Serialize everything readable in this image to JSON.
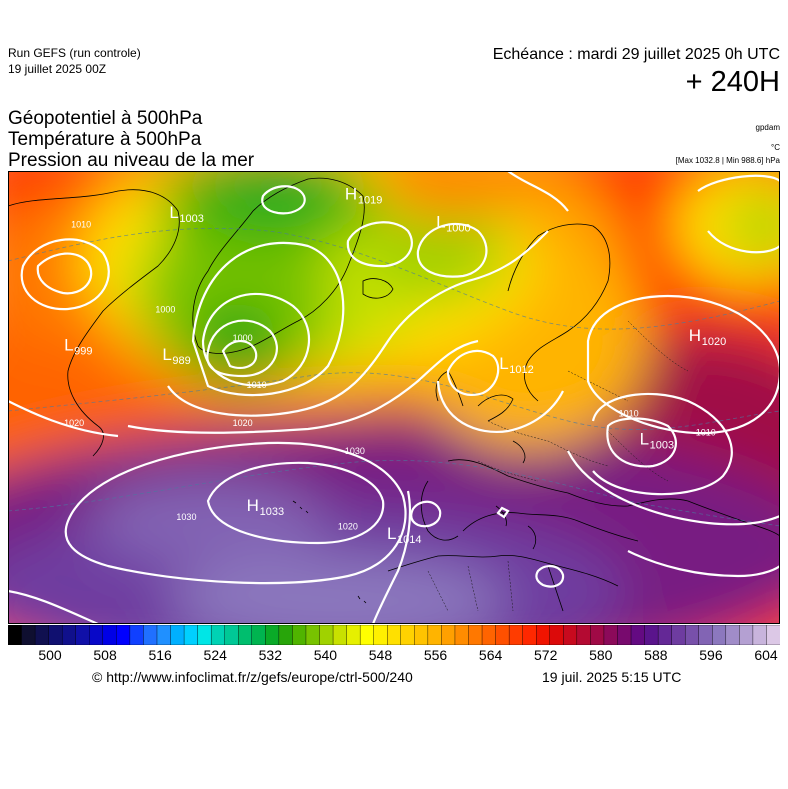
{
  "header": {
    "run_title": "Run GEFS (run controle)",
    "run_date": "19 juillet 2025 00Z",
    "valid_time": "Echéance : mardi 29 juillet 2025 0h UTC",
    "lead_time": "+ 240H"
  },
  "titles": {
    "line1": "Géopotentiel à 500hPa",
    "line2": "Température à 500hPa",
    "line3": "Pression au niveau de la mer"
  },
  "units": {
    "geopotential": "gpdam",
    "temperature": "°C",
    "pressure_extremes": "[Max 1032.8 | Min 988.6] hPa"
  },
  "colorbar": {
    "tick_labels": [
      "500",
      "508",
      "516",
      "524",
      "532",
      "540",
      "548",
      "556",
      "564",
      "572",
      "580",
      "588",
      "596",
      "604"
    ],
    "colors": [
      "#000000",
      "#0f0f30",
      "#101050",
      "#101070",
      "#10108c",
      "#1010a8",
      "#0808c8",
      "#0000e6",
      "#0000ff",
      "#1040ff",
      "#2070ff",
      "#2090ff",
      "#00b0ff",
      "#00d0ff",
      "#00e6e6",
      "#00d2b4",
      "#00c896",
      "#00be6e",
      "#00b450",
      "#0aaa28",
      "#28a50a",
      "#50b400",
      "#78c300",
      "#a0d200",
      "#c8e100",
      "#e6f000",
      "#ffff00",
      "#fff000",
      "#ffe000",
      "#ffd200",
      "#ffc300",
      "#ffb400",
      "#ffa000",
      "#ff8c00",
      "#ff7800",
      "#ff6400",
      "#ff5000",
      "#ff3c00",
      "#ff2800",
      "#f01400",
      "#dc0a0a",
      "#c80a1e",
      "#b40a32",
      "#a00a46",
      "#8c0a5a",
      "#780a6e",
      "#640a82",
      "#5a148c",
      "#642896",
      "#6e3ca0",
      "#7850aa",
      "#8264b4",
      "#8c78be",
      "#a08cc8",
      "#b4a0d2",
      "#c8b4dc",
      "#dcc8e6"
    ]
  },
  "pressure_centers": [
    {
      "type": "L",
      "value": "999",
      "lon": -52,
      "lat": 57
    },
    {
      "type": "L",
      "value": "1003",
      "lon": -37,
      "lat": 71
    },
    {
      "type": "H",
      "value": "1019",
      "lon": -12,
      "lat": 73
    },
    {
      "type": "L",
      "value": "1000",
      "lon": 1,
      "lat": 70
    },
    {
      "type": "L",
      "value": "989",
      "lon": -38,
      "lat": 56
    },
    {
      "type": "L",
      "value": "1012",
      "lon": 10,
      "lat": 55
    },
    {
      "type": "H",
      "value": "1020",
      "lon": 37,
      "lat": 58
    },
    {
      "type": "L",
      "value": "1003",
      "lon": 30,
      "lat": 47
    },
    {
      "type": "H",
      "value": "1033",
      "lon": -26,
      "lat": 40
    },
    {
      "type": "L",
      "value": "1014",
      "lon": -6,
      "lat": 37
    }
  ],
  "isobar_labels": [
    {
      "value": "1010",
      "lon": -51,
      "lat": 70
    },
    {
      "value": "1000",
      "lon": -39,
      "lat": 61
    },
    {
      "value": "1000",
      "lon": -28,
      "lat": 58
    },
    {
      "value": "1010",
      "lon": -26,
      "lat": 53
    },
    {
      "value": "1020",
      "lon": -28,
      "lat": 49
    },
    {
      "value": "1020",
      "lon": -52,
      "lat": 49
    },
    {
      "value": "1030",
      "lon": -12,
      "lat": 46
    },
    {
      "value": "1030",
      "lon": -36,
      "lat": 39
    },
    {
      "value": "1020",
      "lon": -13,
      "lat": 38
    },
    {
      "value": "1010",
      "lon": 38,
      "lat": 48
    },
    {
      "value": "1010",
      "lon": 27,
      "lat": 50
    }
  ],
  "footer": {
    "copyright": "© http://www.infoclimat.fr/z/gefs/europe/ctrl-500/240",
    "run_stamp": "19 juil. 2025  5:15 UTC"
  }
}
